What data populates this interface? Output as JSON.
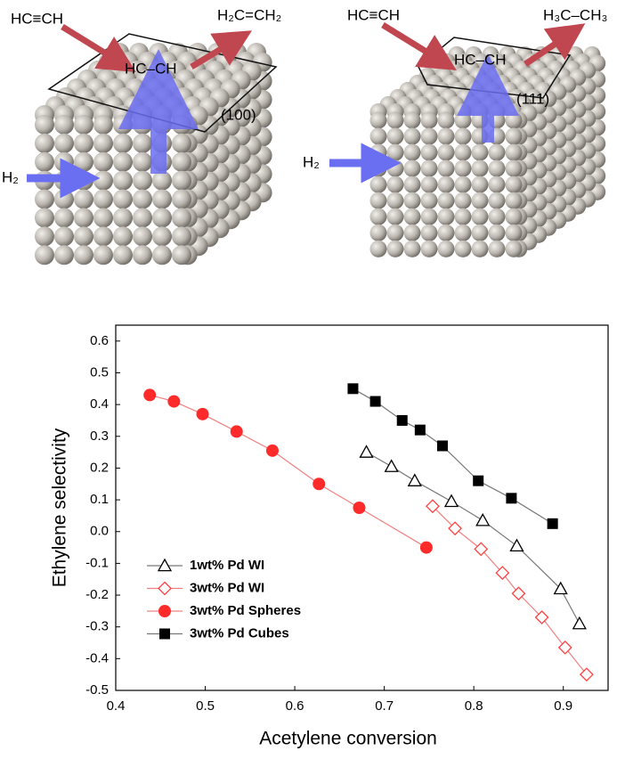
{
  "illustration": {
    "left_cube": {
      "reactant": "HC≡CH",
      "product": "H₂C=CH₂",
      "adsorbed": "HC–CH",
      "hydrogen": "H₂",
      "facet": "(100)"
    },
    "right_cube": {
      "reactant": "HC≡CH",
      "product": "H₃C–CH₃",
      "adsorbed": "HC–CH",
      "hydrogen": "H₂",
      "facet": "(111)"
    }
  },
  "chart_data": {
    "type": "line",
    "x_label": "Acetylene conversion",
    "y_label": "Ethylene selectivity",
    "xlim": [
      0.4,
      0.95
    ],
    "ylim": [
      -0.5,
      0.65
    ],
    "xticks": [
      0.4,
      0.5,
      0.6,
      0.7,
      0.8,
      0.9
    ],
    "yticks": [
      0.6,
      0.5,
      0.4,
      0.3,
      0.2,
      0.1,
      {
        "value": 0,
        "label": "0.0"
      },
      -0.1,
      -0.2,
      -0.3,
      -0.4,
      -0.5
    ],
    "legend": "lower left",
    "series": [
      {
        "name": "1wt% Pd WI",
        "color": "#000000",
        "line_color": "#777777",
        "marker": "triangle-open",
        "x": [
          0.68,
          0.708,
          0.734,
          0.775,
          0.81,
          0.848,
          0.897,
          0.918
        ],
        "values": [
          0.25,
          0.205,
          0.16,
          0.095,
          0.035,
          -0.045,
          -0.18,
          -0.29
        ]
      },
      {
        "name": "3wt% Pd WI",
        "color": "#ff4040",
        "line_color": "#f08080",
        "marker": "diamond-open",
        "x": [
          0.754,
          0.779,
          0.808,
          0.832,
          0.85,
          0.876,
          0.902,
          0.926
        ],
        "values": [
          0.08,
          0.01,
          -0.055,
          -0.13,
          -0.195,
          -0.27,
          -0.365,
          -0.45
        ]
      },
      {
        "name": "3wt% Pd Spheres",
        "color": "#ff2a2a",
        "line_color": "#f08080",
        "marker": "circle",
        "x": [
          0.438,
          0.465,
          0.497,
          0.535,
          0.575,
          0.627,
          0.672,
          0.747
        ],
        "values": [
          0.43,
          0.41,
          0.37,
          0.315,
          0.255,
          0.15,
          0.075,
          -0.05
        ]
      },
      {
        "name": "3wt% Pd Cubes",
        "color": "#000000",
        "line_color": "#777777",
        "marker": "square",
        "x": [
          0.665,
          0.69,
          0.72,
          0.74,
          0.765,
          0.805,
          0.842,
          0.888
        ],
        "values": [
          0.45,
          0.41,
          0.35,
          0.32,
          0.27,
          0.16,
          0.105,
          0.025
        ]
      }
    ]
  }
}
